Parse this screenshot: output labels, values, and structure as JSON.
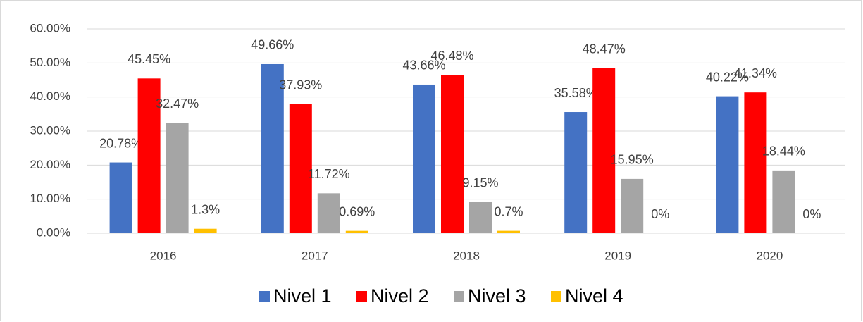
{
  "chart_data": {
    "type": "bar",
    "categories": [
      "2016",
      "2017",
      "2018",
      "2019",
      "2020"
    ],
    "series": [
      {
        "name": "Nivel 1",
        "color": "#4472c4",
        "values": [
          20.78,
          49.66,
          43.66,
          35.58,
          40.22
        ],
        "value_labels": [
          "20.78%",
          "49.66%",
          "43.66%",
          "35.58%",
          "40.22%"
        ]
      },
      {
        "name": "Nivel 2",
        "color": "#ff0000",
        "values": [
          45.45,
          37.93,
          46.48,
          48.47,
          41.34
        ],
        "value_labels": [
          "45.45%",
          "37.93%",
          "46.48%",
          "48.47%",
          "41.34%"
        ]
      },
      {
        "name": "Nivel 3",
        "color": "#a5a5a5",
        "values": [
          32.47,
          11.72,
          9.15,
          15.95,
          18.44
        ],
        "value_labels": [
          "32.47%",
          "11.72%",
          "9.15%",
          "15.95%",
          "18.44%"
        ]
      },
      {
        "name": "Nivel 4",
        "color": "#ffc000",
        "values": [
          1.3,
          0.69,
          0.7,
          0,
          0
        ],
        "value_labels": [
          "1.3%",
          "0.69%",
          "0.7%",
          "0%",
          "0%"
        ]
      }
    ],
    "ylim": [
      0,
      60
    ],
    "yticks": [
      {
        "value": 0,
        "label": "0.00%"
      },
      {
        "value": 10,
        "label": "10.00%"
      },
      {
        "value": 20,
        "label": "20.00%"
      },
      {
        "value": 30,
        "label": "30.00%"
      },
      {
        "value": 40,
        "label": "40.00%"
      },
      {
        "value": 50,
        "label": "50.00%"
      },
      {
        "value": 60,
        "label": "60.00%"
      }
    ],
    "grid": true,
    "legend": "bottom"
  }
}
